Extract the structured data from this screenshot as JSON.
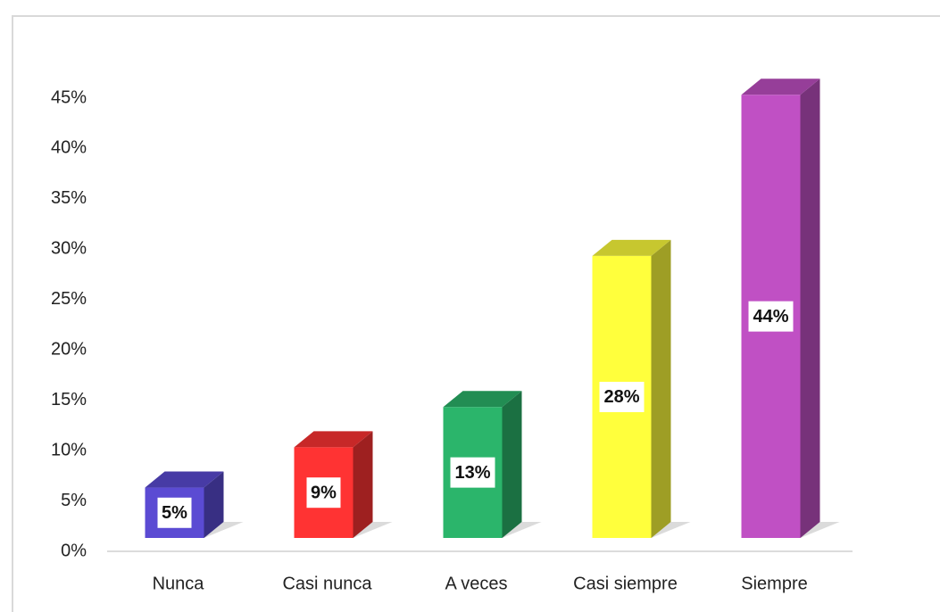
{
  "chart_data": {
    "type": "bar3d",
    "categories": [
      "Nunca",
      "Casi nunca",
      "A veces",
      "Casi siempre",
      "Siempre"
    ],
    "values": [
      5,
      9,
      13,
      28,
      44
    ],
    "value_labels": [
      "5%",
      "9%",
      "13%",
      "28%",
      "44%"
    ],
    "colors": [
      "#5b4bd3",
      "#ff3333",
      "#2bb56b",
      "#ffff3c",
      "#c050c4"
    ],
    "ylim": [
      0,
      45
    ],
    "yticks": [
      {
        "value": 0,
        "label": "0%"
      },
      {
        "value": 5,
        "label": "5%"
      },
      {
        "value": 10,
        "label": "10%"
      },
      {
        "value": 15,
        "label": "15%"
      },
      {
        "value": 20,
        "label": "20%"
      },
      {
        "value": 25,
        "label": "25%"
      },
      {
        "value": 30,
        "label": "30%"
      },
      {
        "value": 35,
        "label": "35%"
      },
      {
        "value": 40,
        "label": "40%"
      },
      {
        "value": 45,
        "label": "45%"
      }
    ],
    "grid": false
  }
}
